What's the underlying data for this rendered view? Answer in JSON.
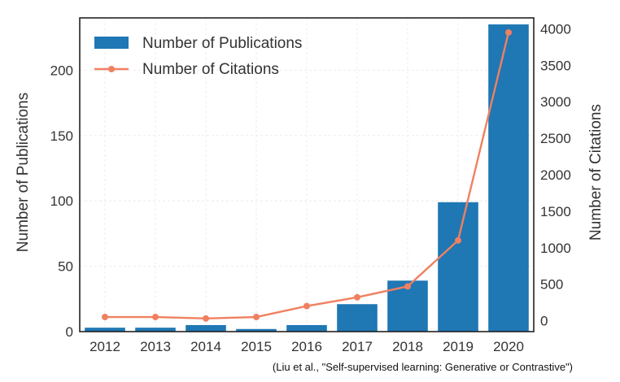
{
  "chart_data": {
    "type": "bar",
    "categories": [
      "2012",
      "2013",
      "2014",
      "2015",
      "2016",
      "2017",
      "2018",
      "2019",
      "2020"
    ],
    "series": [
      {
        "name": "Number of Publications",
        "type": "bar",
        "axis": "left",
        "color": "#1f77b4",
        "values": [
          3,
          3,
          5,
          2,
          5,
          21,
          39,
          99,
          235
        ]
      },
      {
        "name": "Number of Citations",
        "type": "line",
        "axis": "right",
        "color": "#f08060",
        "values": [
          50,
          50,
          30,
          50,
          200,
          320,
          470,
          1100,
          3950
        ]
      }
    ],
    "ylabel": "Number of Publications",
    "y2label": "Number of Citations",
    "ylim": [
      0,
      240
    ],
    "y2lim": [
      -150,
      4150
    ],
    "yticks": [
      "0",
      "50",
      "100",
      "150",
      "200"
    ],
    "y2ticks": [
      "0",
      "500",
      "1000",
      "1500",
      "2000",
      "2500",
      "3000",
      "3500",
      "4000"
    ],
    "legend_position": "top-left",
    "grid": true
  },
  "caption": "(Liu et al., \"Self-supervised learning: Generative or Contrastive\")"
}
